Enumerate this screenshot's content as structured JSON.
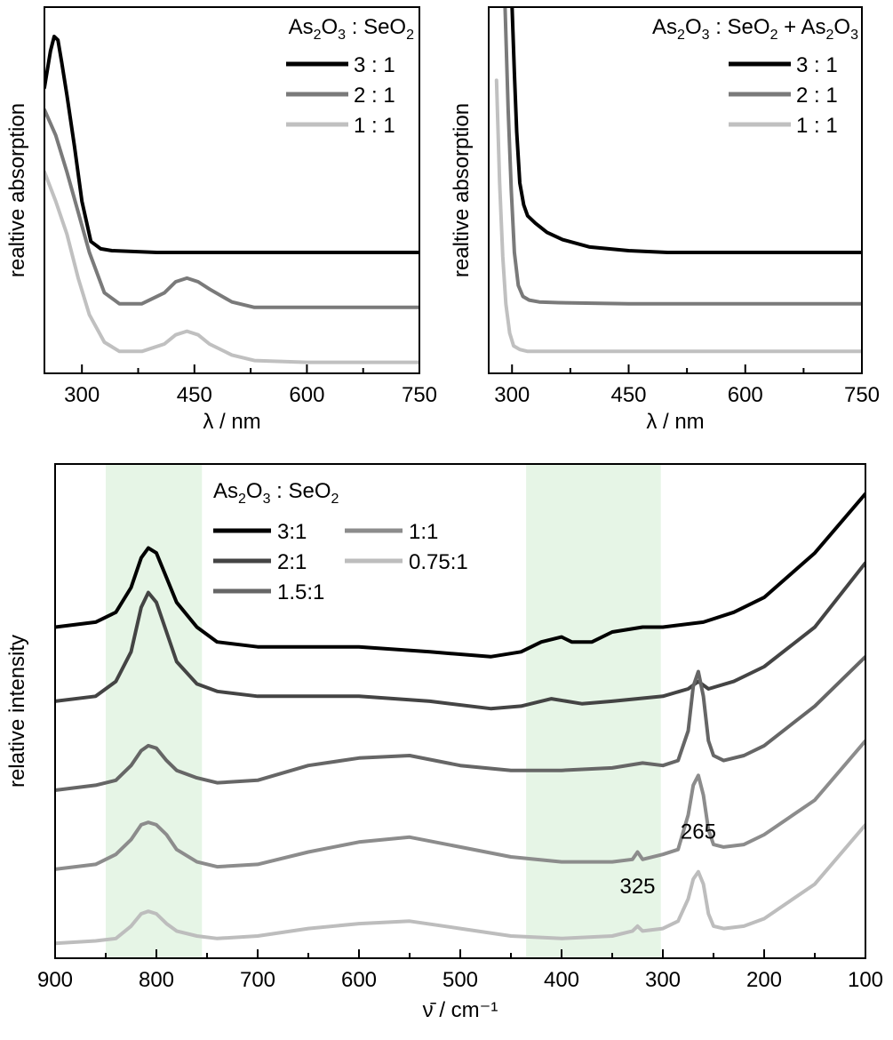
{
  "chart_data": [
    {
      "type": "line",
      "title": "",
      "xlabel": "λ / nm",
      "ylabel": "realtive absorption",
      "xlim": [
        250,
        750
      ],
      "xticks": [
        300,
        450,
        600,
        750
      ],
      "ylim": [
        0,
        1
      ],
      "legend": {
        "title": "As2O3 : SeO2",
        "title_parts": [
          {
            "t": "As"
          },
          {
            "t": "2",
            "sub": true
          },
          {
            "t": "O"
          },
          {
            "t": "3",
            "sub": true
          },
          {
            "t": " : SeO"
          },
          {
            "t": "2",
            "sub": true
          }
        ],
        "placement": "top-right"
      },
      "series": [
        {
          "name": "3 : 1",
          "color": "#000000",
          "x": [
            250,
            258,
            263,
            268,
            273,
            280,
            290,
            300,
            312,
            325,
            340,
            400,
            500,
            600,
            750
          ],
          "y": [
            0.78,
            0.88,
            0.92,
            0.91,
            0.85,
            0.76,
            0.62,
            0.47,
            0.36,
            0.34,
            0.335,
            0.33,
            0.33,
            0.33,
            0.33
          ]
        },
        {
          "name": "2 : 1",
          "color": "#7a7a7a",
          "x": [
            250,
            265,
            280,
            295,
            310,
            330,
            350,
            380,
            410,
            425,
            440,
            455,
            470,
            500,
            530,
            600,
            750
          ],
          "y": [
            0.72,
            0.65,
            0.55,
            0.44,
            0.33,
            0.22,
            0.19,
            0.19,
            0.22,
            0.25,
            0.26,
            0.25,
            0.23,
            0.195,
            0.18,
            0.18,
            0.18
          ]
        },
        {
          "name": "1 : 1",
          "color": "#c0c0c0",
          "x": [
            250,
            265,
            280,
            295,
            310,
            330,
            350,
            380,
            410,
            425,
            440,
            455,
            470,
            500,
            530,
            600,
            750
          ],
          "y": [
            0.55,
            0.47,
            0.38,
            0.26,
            0.16,
            0.085,
            0.06,
            0.06,
            0.08,
            0.105,
            0.115,
            0.105,
            0.08,
            0.05,
            0.035,
            0.03,
            0.03
          ]
        }
      ]
    },
    {
      "type": "line",
      "title": "",
      "xlabel": "λ / nm",
      "ylabel": "realtive absorption",
      "xlim": [
        270,
        750
      ],
      "xticks": [
        300,
        450,
        600,
        750
      ],
      "ylim": [
        0,
        1
      ],
      "legend": {
        "title": "As2O3 : SeO2 + As2O3",
        "title_parts": [
          {
            "t": "As"
          },
          {
            "t": "2",
            "sub": true
          },
          {
            "t": "O"
          },
          {
            "t": "3",
            "sub": true
          },
          {
            "t": " : SeO"
          },
          {
            "t": "2",
            "sub": true
          },
          {
            "t": " + As"
          },
          {
            "t": "2",
            "sub": true
          },
          {
            "t": "O"
          },
          {
            "t": "3",
            "sub": true
          }
        ],
        "placement": "top-right"
      },
      "series": [
        {
          "name": "3 : 1",
          "color": "#000000",
          "x": [
            300,
            303,
            306,
            310,
            315,
            320,
            330,
            345,
            365,
            400,
            450,
            500,
            600,
            750
          ],
          "y": [
            1.0,
            0.82,
            0.66,
            0.52,
            0.46,
            0.43,
            0.41,
            0.385,
            0.365,
            0.345,
            0.335,
            0.33,
            0.33,
            0.33
          ]
        },
        {
          "name": "2 : 1",
          "color": "#7a7a7a",
          "x": [
            291,
            295,
            299,
            303,
            308,
            314,
            322,
            335,
            360,
            450,
            750
          ],
          "y": [
            1.0,
            0.72,
            0.5,
            0.33,
            0.24,
            0.21,
            0.2,
            0.195,
            0.193,
            0.19,
            0.19
          ]
        },
        {
          "name": "1 : 1",
          "color": "#c0c0c0",
          "x": [
            280,
            284,
            288,
            292,
            297,
            302,
            310,
            320,
            340,
            450,
            750
          ],
          "y": [
            0.8,
            0.52,
            0.32,
            0.19,
            0.11,
            0.075,
            0.065,
            0.06,
            0.06,
            0.06,
            0.06
          ]
        }
      ]
    },
    {
      "type": "line",
      "title": "",
      "xlabel": "ν̄ / cm⁻¹",
      "ylabel": "relative intensity",
      "xlim": [
        900,
        100
      ],
      "xticks": [
        900,
        800,
        700,
        600,
        500,
        400,
        300,
        200,
        100
      ],
      "ylim": [
        0,
        1
      ],
      "shaded_ranges": [
        [
          850,
          755
        ],
        [
          435,
          302
        ]
      ],
      "legend": {
        "title": "As2O3 : SeO2",
        "title_parts": [
          {
            "t": "As"
          },
          {
            "t": "2",
            "sub": true
          },
          {
            "t": "O"
          },
          {
            "t": "3",
            "sub": true
          },
          {
            "t": " : SeO"
          },
          {
            "t": "2",
            "sub": true
          }
        ],
        "placement": "top-left"
      },
      "annotations": [
        {
          "text": "265",
          "x": 265,
          "y": 0.22
        },
        {
          "text": "325",
          "x": 325,
          "y": 0.11
        }
      ],
      "series": [
        {
          "name": "3:1",
          "color": "#000000",
          "x": [
            900,
            860,
            840,
            825,
            815,
            808,
            800,
            790,
            780,
            760,
            740,
            700,
            600,
            530,
            470,
            440,
            420,
            400,
            390,
            370,
            350,
            320,
            300,
            260,
            230,
            200,
            150,
            100
          ],
          "y": [
            0.67,
            0.68,
            0.7,
            0.75,
            0.81,
            0.83,
            0.82,
            0.77,
            0.72,
            0.67,
            0.64,
            0.63,
            0.63,
            0.62,
            0.61,
            0.62,
            0.64,
            0.65,
            0.64,
            0.64,
            0.66,
            0.67,
            0.67,
            0.68,
            0.7,
            0.73,
            0.82,
            0.94
          ]
        },
        {
          "name": "2:1",
          "color": "#444444",
          "x": [
            900,
            860,
            840,
            825,
            815,
            808,
            800,
            790,
            780,
            760,
            740,
            700,
            600,
            530,
            470,
            440,
            410,
            380,
            350,
            300,
            275,
            265,
            255,
            230,
            200,
            150,
            100
          ],
          "y": [
            0.52,
            0.53,
            0.56,
            0.62,
            0.71,
            0.74,
            0.72,
            0.66,
            0.6,
            0.555,
            0.54,
            0.53,
            0.53,
            0.52,
            0.505,
            0.51,
            0.525,
            0.515,
            0.52,
            0.53,
            0.545,
            0.56,
            0.545,
            0.56,
            0.59,
            0.67,
            0.8
          ]
        },
        {
          "name": "1.5:1",
          "color": "#666666",
          "x": [
            900,
            860,
            840,
            825,
            815,
            808,
            800,
            790,
            780,
            760,
            740,
            700,
            650,
            600,
            550,
            500,
            450,
            400,
            350,
            320,
            300,
            285,
            275,
            270,
            265,
            260,
            255,
            250,
            240,
            220,
            200,
            150,
            100
          ],
          "y": [
            0.34,
            0.35,
            0.36,
            0.39,
            0.42,
            0.43,
            0.425,
            0.4,
            0.38,
            0.365,
            0.355,
            0.36,
            0.39,
            0.405,
            0.41,
            0.39,
            0.38,
            0.38,
            0.385,
            0.395,
            0.39,
            0.4,
            0.46,
            0.55,
            0.58,
            0.53,
            0.44,
            0.41,
            0.4,
            0.41,
            0.43,
            0.51,
            0.61
          ]
        },
        {
          "name": "1:1",
          "color": "#8c8c8c",
          "x": [
            900,
            860,
            840,
            825,
            815,
            808,
            800,
            790,
            780,
            760,
            740,
            700,
            650,
            600,
            550,
            500,
            450,
            400,
            350,
            330,
            325,
            320,
            300,
            285,
            275,
            270,
            265,
            260,
            255,
            250,
            240,
            220,
            200,
            150,
            100
          ],
          "y": [
            0.18,
            0.19,
            0.21,
            0.24,
            0.27,
            0.275,
            0.27,
            0.25,
            0.22,
            0.195,
            0.185,
            0.19,
            0.215,
            0.235,
            0.245,
            0.225,
            0.205,
            0.195,
            0.195,
            0.2,
            0.215,
            0.2,
            0.21,
            0.22,
            0.29,
            0.35,
            0.37,
            0.33,
            0.26,
            0.23,
            0.225,
            0.23,
            0.25,
            0.32,
            0.44
          ]
        },
        {
          "name": "0.75:1",
          "color": "#bdbdbd",
          "x": [
            900,
            860,
            840,
            825,
            815,
            808,
            800,
            790,
            780,
            760,
            740,
            700,
            650,
            600,
            550,
            500,
            450,
            400,
            350,
            330,
            325,
            320,
            300,
            285,
            275,
            270,
            265,
            260,
            255,
            250,
            240,
            220,
            200,
            150,
            100
          ],
          "y": [
            0.03,
            0.035,
            0.04,
            0.065,
            0.09,
            0.095,
            0.09,
            0.07,
            0.055,
            0.045,
            0.04,
            0.045,
            0.06,
            0.07,
            0.075,
            0.06,
            0.045,
            0.04,
            0.045,
            0.055,
            0.065,
            0.055,
            0.06,
            0.075,
            0.12,
            0.16,
            0.175,
            0.15,
            0.09,
            0.065,
            0.06,
            0.065,
            0.08,
            0.15,
            0.27
          ]
        }
      ]
    }
  ]
}
